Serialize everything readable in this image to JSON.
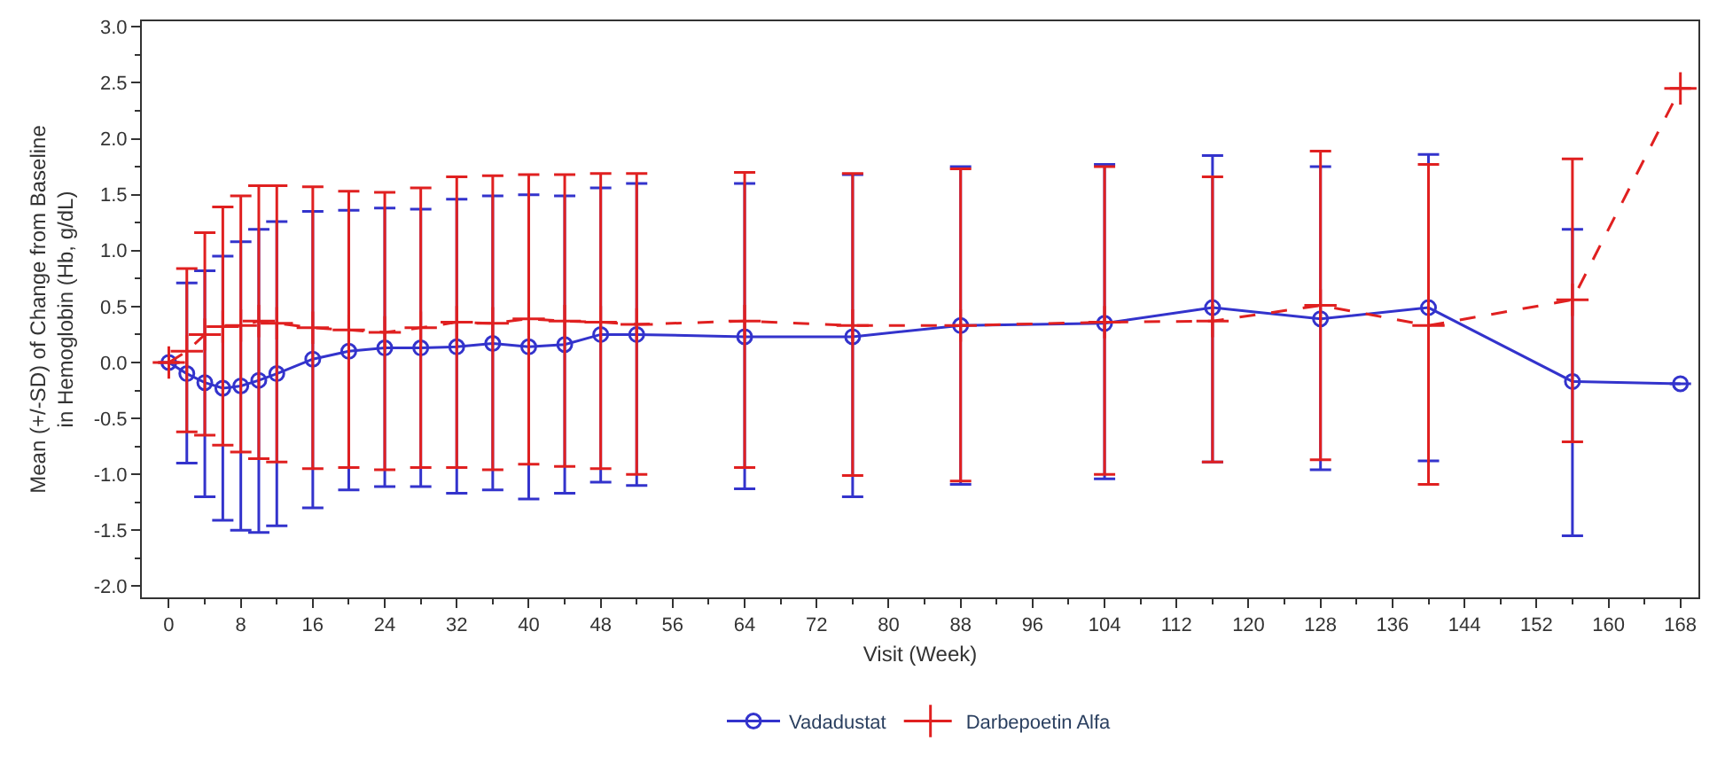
{
  "chart_data": {
    "type": "line",
    "xlabel": "Visit (Week)",
    "ylabel": "Mean (+/-SD) of Change from Baseline\nin Hemoglobin (Hb, g/dL)",
    "x": [
      0,
      2,
      4,
      6,
      8,
      10,
      12,
      16,
      20,
      24,
      28,
      32,
      36,
      40,
      44,
      48,
      52,
      64,
      76,
      88,
      104,
      116,
      128,
      140,
      156,
      168
    ],
    "series": [
      {
        "name": "Vadadustat",
        "color": "#3333cc",
        "marker": "circle",
        "line_style": "solid",
        "values": [
          0,
          -0.1,
          -0.18,
          -0.23,
          -0.21,
          -0.16,
          -0.1,
          0.03,
          0.1,
          0.13,
          0.13,
          0.14,
          0.17,
          0.14,
          0.16,
          0.25,
          0.25,
          0.23,
          0.23,
          0.33,
          0.35,
          0.49,
          0.39,
          0.49,
          -0.17,
          -0.19
        ],
        "errors": [
          null,
          [
            -0.9,
            0.71
          ],
          [
            -1.2,
            0.82
          ],
          [
            -1.41,
            0.95
          ],
          [
            -1.5,
            1.08
          ],
          [
            -1.52,
            1.19
          ],
          [
            -1.46,
            1.26
          ],
          [
            -1.3,
            1.35
          ],
          [
            -1.14,
            1.36
          ],
          [
            -1.11,
            1.38
          ],
          [
            -1.11,
            1.37
          ],
          [
            -1.17,
            1.46
          ],
          [
            -1.14,
            1.49
          ],
          [
            -1.22,
            1.5
          ],
          [
            -1.17,
            1.49
          ],
          [
            -1.07,
            1.56
          ],
          [
            -1.1,
            1.6
          ],
          [
            -1.13,
            1.6
          ],
          [
            -1.2,
            1.68
          ],
          [
            -1.09,
            1.75
          ],
          [
            -1.04,
            1.77
          ],
          [
            -0.89,
            1.85
          ],
          [
            -0.96,
            1.75
          ],
          [
            -0.88,
            1.86
          ],
          [
            -1.55,
            1.19
          ],
          null
        ]
      },
      {
        "name": "Darbepoetin Alfa",
        "color": "#e02020",
        "marker": "cross",
        "line_style": "dashed",
        "values": [
          0,
          0.1,
          0.25,
          0.32,
          0.33,
          0.37,
          0.35,
          0.31,
          0.29,
          0.27,
          0.31,
          0.36,
          0.35,
          0.39,
          0.37,
          0.36,
          0.34,
          0.37,
          0.33,
          0.33,
          0.36,
          0.37,
          0.51,
          0.33,
          0.56,
          2.45
        ],
        "errors": [
          null,
          [
            -0.62,
            0.84
          ],
          [
            -0.65,
            1.16
          ],
          [
            -0.74,
            1.39
          ],
          [
            -0.8,
            1.49
          ],
          [
            -0.86,
            1.58
          ],
          [
            -0.89,
            1.58
          ],
          [
            -0.95,
            1.57
          ],
          [
            -0.94,
            1.53
          ],
          [
            -0.96,
            1.52
          ],
          [
            -0.94,
            1.56
          ],
          [
            -0.94,
            1.66
          ],
          [
            -0.96,
            1.67
          ],
          [
            -0.91,
            1.68
          ],
          [
            -0.93,
            1.68
          ],
          [
            -0.95,
            1.69
          ],
          [
            -1.0,
            1.69
          ],
          [
            -0.94,
            1.7
          ],
          [
            -1.01,
            1.69
          ],
          [
            -1.06,
            1.73
          ],
          [
            -1.0,
            1.75
          ],
          [
            -0.89,
            1.66
          ],
          [
            -0.87,
            1.89
          ],
          [
            -1.09,
            1.77
          ],
          [
            -0.71,
            1.82
          ],
          null
        ]
      }
    ],
    "xlim": [
      -3,
      170
    ],
    "xticks": [
      0,
      8,
      16,
      24,
      32,
      40,
      48,
      56,
      64,
      72,
      80,
      88,
      96,
      104,
      112,
      120,
      128,
      136,
      144,
      152,
      160,
      168
    ],
    "ylim": [
      -2.1,
      3.05
    ],
    "yticks": [
      {
        "value": -2,
        "label": "-2.0"
      },
      {
        "value": -1.5,
        "label": "-1.5"
      },
      {
        "value": -1,
        "label": "-1.0"
      },
      {
        "value": -0.5,
        "label": "-0.5"
      },
      {
        "value": 0,
        "label": "0.0"
      },
      {
        "value": 0.5,
        "label": "0.5"
      },
      {
        "value": 1,
        "label": "1.0"
      },
      {
        "value": 1.5,
        "label": "1.5"
      },
      {
        "value": 2,
        "label": "2.0"
      },
      {
        "value": 2.5,
        "label": "2.5"
      },
      {
        "value": 3,
        "label": "3.0"
      }
    ],
    "grid": false,
    "legend": "bottom"
  }
}
